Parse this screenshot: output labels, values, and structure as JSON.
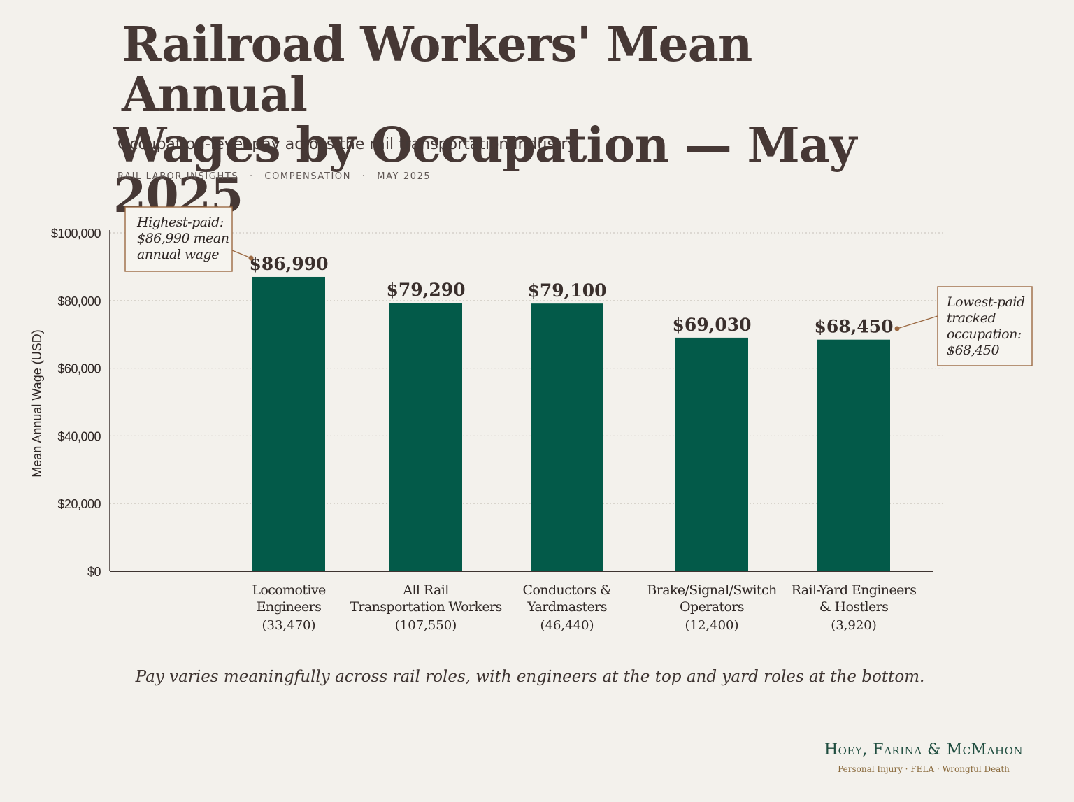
{
  "header": {
    "title_line1": "Railroad Workers' Mean Annual",
    "title_line2": "Wages by Occupation — May 2025",
    "subtitle": "Occupation-level pay across the rail transportation industry",
    "meta": [
      "RAIL LABOR INSIGHTS",
      "COMPENSATION",
      "MAY 2025"
    ],
    "meta_separator": "·"
  },
  "chart_data": {
    "type": "bar",
    "ylabel": "Mean Annual Wage (USD)",
    "xlabel": "",
    "ylim": [
      0,
      100000
    ],
    "y_ticks": [
      0,
      20000,
      40000,
      60000,
      80000,
      100000
    ],
    "y_tick_labels": [
      "$0",
      "$20,000",
      "$40,000",
      "$60,000",
      "$80,000",
      "$100,000"
    ],
    "grid": true,
    "bar_color": "#035a49",
    "categories": [
      {
        "name_lines": [
          "Locomotive",
          "Engineers"
        ],
        "count": "(33,470)"
      },
      {
        "name_lines": [
          "All Rail",
          "Transportation Workers"
        ],
        "count": "(107,550)"
      },
      {
        "name_lines": [
          "Conductors &",
          "Yardmasters"
        ],
        "count": "(46,440)"
      },
      {
        "name_lines": [
          "Brake/Signal/Switch",
          "Operators"
        ],
        "count": "(12,400)"
      },
      {
        "name_lines": [
          "Rail-Yard Engineers",
          "& Hostlers"
        ],
        "count": "(3,920)"
      }
    ],
    "values": [
      86990,
      79290,
      79100,
      69030,
      68450
    ],
    "value_labels": [
      "$86,990",
      "$79,290",
      "$79,100",
      "$69,030",
      "$68,450"
    ],
    "annotations": [
      {
        "target": 0,
        "lines": [
          "Highest-paid:",
          "$86,990 mean",
          "annual wage"
        ]
      },
      {
        "target": 4,
        "lines": [
          "Lowest-paid",
          "tracked",
          "occupation:",
          "$68,450"
        ]
      }
    ],
    "annotation_color": "#9c6a43"
  },
  "footnote": "Pay varies meaningfully across rail roles, with engineers at the top and yard roles at the bottom.",
  "brand": {
    "name": "Hoey, Farina & McMahon",
    "tagline": "Personal Injury · FELA · Wrongful Death"
  }
}
